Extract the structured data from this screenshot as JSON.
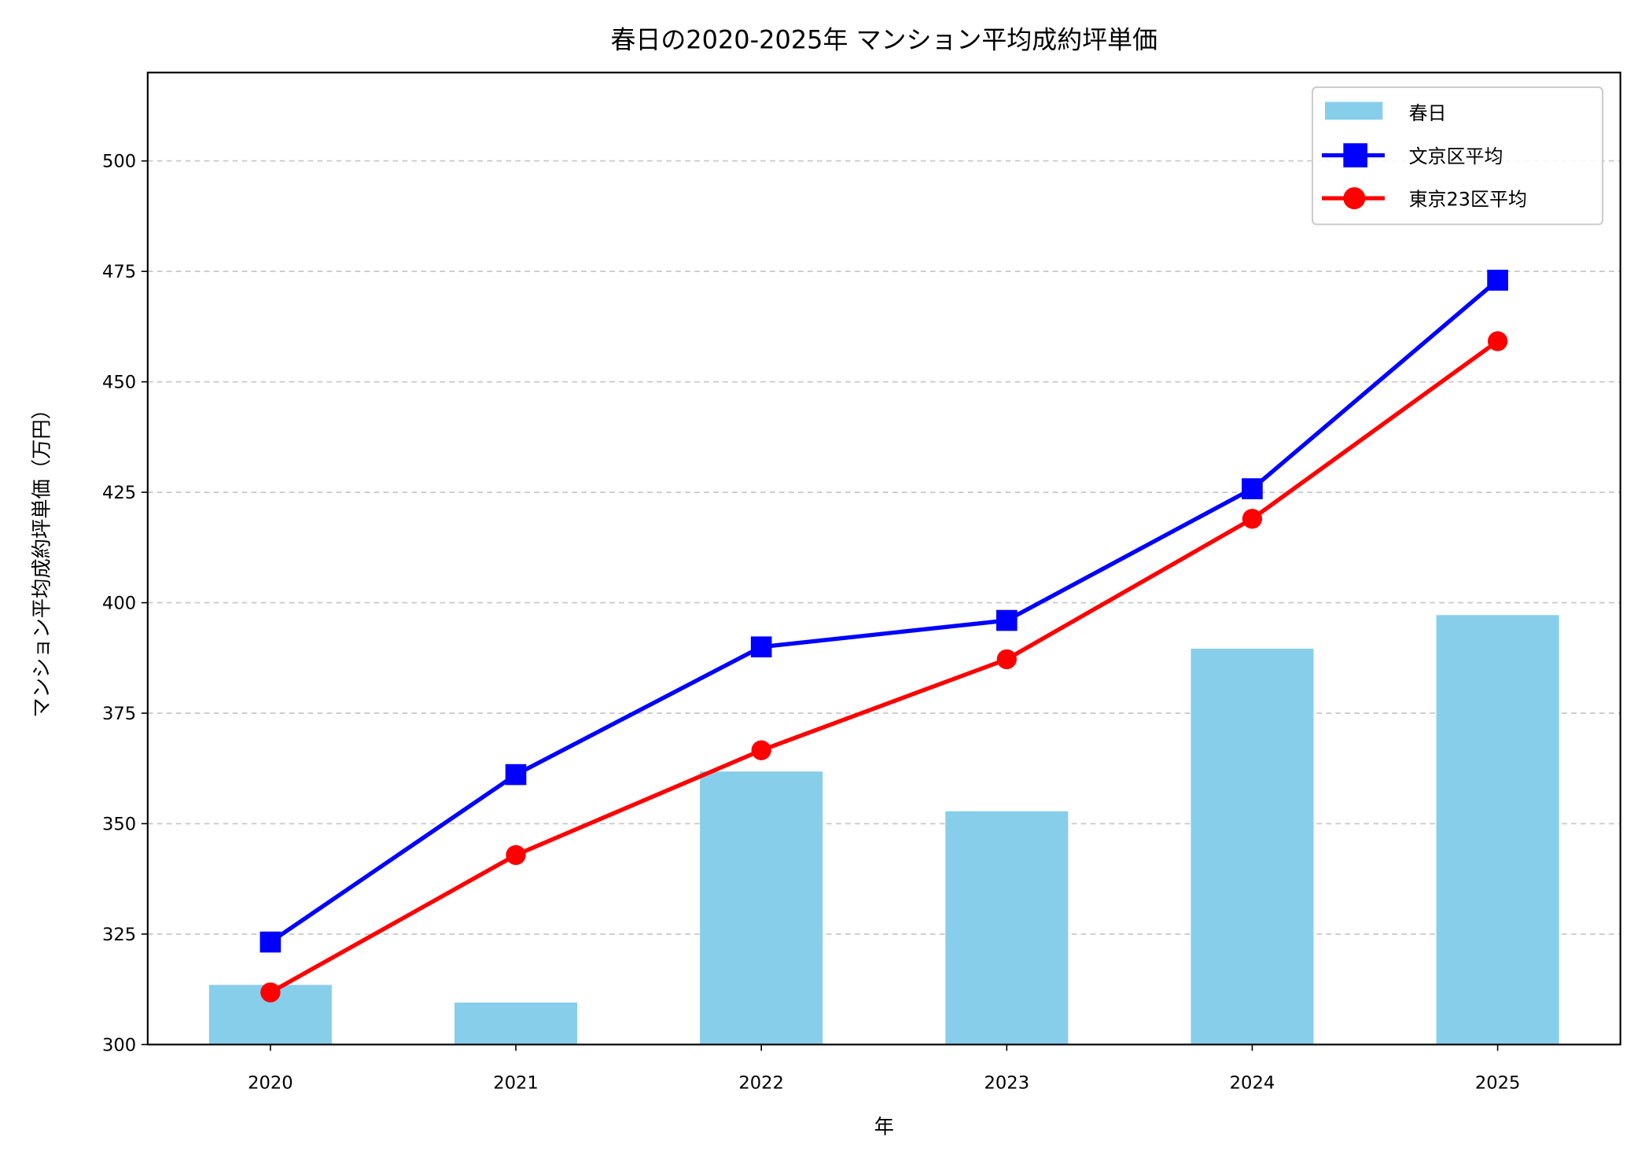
{
  "chart_data": {
    "type": "bar+line",
    "title": "春日の2020-2025年 マンション平均成約坪単価",
    "xlabel": "年",
    "ylabel": "マンション平均成約坪単価（万円）",
    "categories": [
      "2020",
      "2021",
      "2022",
      "2023",
      "2024",
      "2025"
    ],
    "ylim": [
      300,
      520
    ],
    "yticks": [
      300,
      325,
      350,
      375,
      400,
      425,
      450,
      475,
      500
    ],
    "grid": "y, dashed",
    "legend_position": "top-right",
    "series": [
      {
        "name": "春日",
        "type": "bar",
        "color": "#87CEEB",
        "values": [
          313.5,
          309.5,
          361.8,
          352.8,
          389.6,
          397.2
        ]
      },
      {
        "name": "文京区平均",
        "type": "line",
        "marker": "square",
        "color": "#0000FF",
        "values": [
          323.2,
          361.1,
          390.0,
          396.0,
          425.8,
          473.0
        ]
      },
      {
        "name": "東京23区平均",
        "type": "line",
        "marker": "circle",
        "color": "#FF0000",
        "values": [
          311.8,
          342.9,
          366.6,
          387.2,
          419.0,
          459.2
        ]
      }
    ]
  }
}
